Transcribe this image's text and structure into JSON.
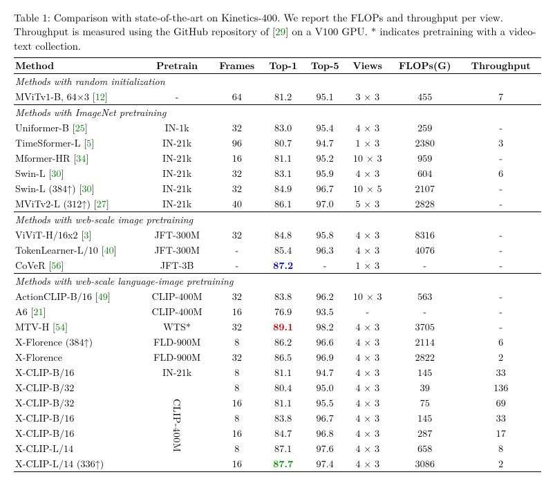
{
  "caption": {
    "label": "Table 1:",
    "text_a": " Comparison with state-of-the-art on Kinetics-400. We report the FLOPs and throughput per view. Throughput is measured using the GitHub repository of ",
    "cite1": "29",
    "text_b": " on a V100 GPU. * indicates pretraining with a video-text collection."
  },
  "headers": [
    "Method",
    "Pretrain",
    "Frames",
    "Top-1",
    "Top-5",
    "Views",
    "FLOPs(G)",
    "Throughput"
  ],
  "colors": {
    "blue": "#0000cc",
    "red": "#cc0000",
    "green": "#009900",
    "cite": "#008000"
  },
  "sections": [
    {
      "title": "Methods with random initialization",
      "rows": [
        {
          "method": "MViTv1-B, 64×3 ",
          "cite": "12",
          "pretrain": "-",
          "frames": "64",
          "top1": "81.2",
          "top5": "95.1",
          "views": "3 × 3",
          "flops": "455",
          "tput": "7"
        }
      ]
    },
    {
      "title": "Methods with ImageNet pretraining",
      "rows": [
        {
          "method": "Uniformer-B ",
          "cite": "25",
          "pretrain": "IN-1k",
          "frames": "32",
          "top1": "83.0",
          "top5": "95.4",
          "views": "4 × 3",
          "flops": "259",
          "tput": "-"
        },
        {
          "method": "TimeSformer-L ",
          "cite": "5",
          "pretrain": "IN-21k",
          "frames": "96",
          "top1": "80.7",
          "top5": "94.7",
          "views": "1 × 3",
          "flops": "2380",
          "tput": "3"
        },
        {
          "method": "Mformer-HR ",
          "cite": "34",
          "pretrain": "IN-21k",
          "frames": "16",
          "top1": "81.1",
          "top5": "95.2",
          "views": "10 × 3",
          "flops": "959",
          "tput": "-"
        },
        {
          "method": "Swin-L ",
          "cite": "30",
          "pretrain": "IN-21k",
          "frames": "32",
          "top1": "83.1",
          "top5": "95.9",
          "views": "4 × 3",
          "flops": "604",
          "tput": "6"
        },
        {
          "method": "Swin-L (384↑) ",
          "cite": "30",
          "pretrain": "IN-21k",
          "frames": "32",
          "top1": "84.9",
          "top5": "96.7",
          "views": "10 × 5",
          "flops": "2107",
          "tput": "-"
        },
        {
          "method": "MViTv2-L (312↑) ",
          "cite": "27",
          "pretrain": "IN-21k",
          "frames": "40",
          "top1": "86.1",
          "top5": "97.0",
          "views": "5 × 3",
          "flops": "2828",
          "tput": "-"
        }
      ]
    },
    {
      "title": "Methods with web-scale image pretraining",
      "rows": [
        {
          "method": "ViViT-H/16x2 ",
          "cite": "3",
          "pretrain": "JFT-300M",
          "frames": "32",
          "top1": "84.8",
          "top5": "95.8",
          "views": "4 × 3",
          "flops": "8316",
          "tput": "-"
        },
        {
          "method": "TokenLearner-L/10 ",
          "cite": "40",
          "pretrain": "JFT-300M",
          "frames": "-",
          "top1": "85.4",
          "top5": "96.3",
          "views": "4 × 3",
          "flops": "4076",
          "tput": "-"
        },
        {
          "method": "CoVeR ",
          "cite": "56",
          "pretrain": "JFT-3B",
          "frames": "-",
          "top1": "87.2",
          "top1_color": "blue",
          "top5": "-",
          "views": "1 × 3",
          "flops": "-",
          "tput": "-"
        }
      ]
    },
    {
      "title": "Methods with web-scale language-image pretraining",
      "rows": [
        {
          "method": "ActionCLIP-B/16 ",
          "cite": "49",
          "pretrain": "CLIP-400M",
          "frames": "32",
          "top1": "83.8",
          "top5": "96.2",
          "views": "10 × 3",
          "flops": "563",
          "tput": "-"
        },
        {
          "method": "A6 ",
          "cite": "21",
          "pretrain": "CLIP-400M",
          "frames": "16",
          "top1": "76.9",
          "top5": "93.5",
          "views": "-",
          "flops": "-",
          "tput": "-"
        },
        {
          "method": "MTV-H ",
          "cite": "54",
          "pretrain": "WTS*",
          "frames": "32",
          "top1": "89.1",
          "top1_color": "red",
          "top5": "98.2",
          "views": "4 × 3",
          "flops": "3705",
          "tput": "-"
        },
        {
          "method": "X-Florence (384↑)",
          "pretrain": "FLD-900M",
          "frames": "8",
          "top1": "86.2",
          "top5": "96.6",
          "views": "4 × 3",
          "flops": "2114",
          "tput": "6"
        },
        {
          "method": "X-Florence",
          "pretrain": "FLD-900M",
          "frames": "32",
          "top1": "86.5",
          "top5": "96.9",
          "views": "4 × 3",
          "flops": "2822",
          "tput": "2"
        },
        {
          "method": "X-CLIP-B/16",
          "pretrain": "IN-21k",
          "frames": "8",
          "top1": "81.1",
          "top5": "94.7",
          "views": "4 × 3",
          "flops": "145",
          "tput": "33"
        },
        {
          "method": "X-CLIP-B/32",
          "pretrain_vspan": "CLIP-400M",
          "vspan": 6,
          "frames": "8",
          "top1": "80.4",
          "top5": "95.0",
          "views": "4 × 3",
          "flops": "39",
          "tput": "136"
        },
        {
          "method": "X-CLIP-B/32",
          "frames": "16",
          "top1": "81.1",
          "top5": "95.5",
          "views": "4 × 3",
          "flops": "75",
          "tput": "69"
        },
        {
          "method": "X-CLIP-B/16",
          "frames": "8",
          "top1": "83.8",
          "top5": "96.7",
          "views": "4 × 3",
          "flops": "145",
          "tput": "33"
        },
        {
          "method": "X-CLIP-B/16",
          "frames": "16",
          "top1": "84.7",
          "top5": "96.8",
          "views": "4 × 3",
          "flops": "287",
          "tput": "17"
        },
        {
          "method": "X-CLIP-L/14",
          "frames": "8",
          "top1": "87.1",
          "top5": "97.6",
          "views": "4 × 3",
          "flops": "658",
          "tput": "8"
        },
        {
          "method": "X-CLIP-L/14 (336↑)",
          "frames": "16",
          "top1": "87.7",
          "top1_color": "greenb",
          "top5": "97.4",
          "views": "4 × 3",
          "flops": "3086",
          "tput": "2"
        }
      ]
    }
  ]
}
